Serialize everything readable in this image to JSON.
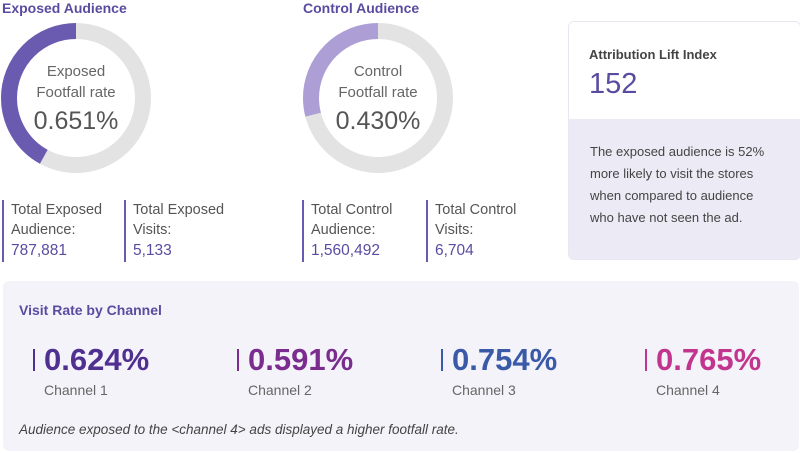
{
  "exposed": {
    "title": "Exposed Audience",
    "donut_label_line1": "Exposed",
    "donut_label_line2": "Footfall rate",
    "rate": "0.651%",
    "fill_fraction": 0.42,
    "total_audience_label": "Total Exposed Audience:",
    "total_audience_value": "787,881",
    "total_visits_label": "Total Exposed Visits:",
    "total_visits_value": "5,133",
    "color": "#6b5bb0"
  },
  "control": {
    "title": "Control Audience",
    "donut_label_line1": "Control",
    "donut_label_line2": "Footfall rate",
    "rate": "0.430%",
    "fill_fraction": 0.29,
    "total_audience_label": "Total Control Audience:",
    "total_audience_value": "1,560,492",
    "total_visits_label": "Total Control Visits:",
    "total_visits_value": "6,704",
    "color": "#ad9fd6"
  },
  "lift": {
    "title": "Attribution Lift Index",
    "value": "152",
    "description": "The exposed audience is 52% more likely to visit the stores when compared to audience who have not seen the ad."
  },
  "channels": {
    "title": "Visit Rate by Channel",
    "items": [
      {
        "value": "0.624%",
        "name": "Channel 1",
        "color": "#4f2f8f"
      },
      {
        "value": "0.591%",
        "name": "Channel 2",
        "color": "#7a2d8e"
      },
      {
        "value": "0.754%",
        "name": "Channel 3",
        "color": "#3a5aa8"
      },
      {
        "value": "0.765%",
        "name": "Channel 4",
        "color": "#c2358f"
      }
    ],
    "note": "Audience exposed to the <channel 4> ads displayed a higher footfall rate."
  },
  "colors": {
    "track": "#e3e3e3",
    "accent": "#5b4ba0"
  }
}
